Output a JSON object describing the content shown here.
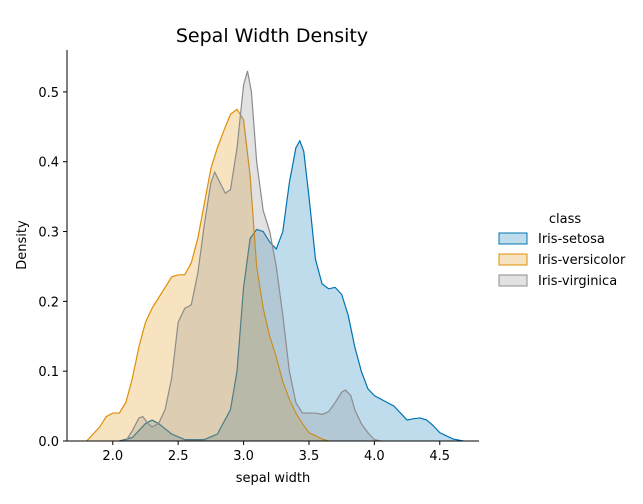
{
  "chart_data": {
    "type": "area",
    "title": "Sepal Width Density",
    "xlabel": "sepal width",
    "ylabel": "Density",
    "xlim": [
      1.65,
      4.8
    ],
    "ylim": [
      0,
      0.56
    ],
    "xticks": [
      2.0,
      2.5,
      3.0,
      3.5,
      4.0,
      4.5
    ],
    "yticks": [
      0.0,
      0.1,
      0.2,
      0.3,
      0.4,
      0.5
    ],
    "xtick_labels": [
      "2.0",
      "2.5",
      "3.0",
      "3.5",
      "4.0",
      "4.5"
    ],
    "ytick_labels": [
      "0.0",
      "0.1",
      "0.2",
      "0.3",
      "0.4",
      "0.5"
    ],
    "grid": false,
    "legend": {
      "title": "class",
      "position": "right"
    },
    "series": [
      {
        "name": "Iris-setosa",
        "color": "#0173b2",
        "points": [
          [
            2.05,
            0.0
          ],
          [
            2.15,
            0.005
          ],
          [
            2.25,
            0.025
          ],
          [
            2.3,
            0.03
          ],
          [
            2.35,
            0.025
          ],
          [
            2.45,
            0.01
          ],
          [
            2.55,
            0.002
          ],
          [
            2.7,
            0.002
          ],
          [
            2.8,
            0.01
          ],
          [
            2.9,
            0.045
          ],
          [
            2.95,
            0.1
          ],
          [
            3.0,
            0.22
          ],
          [
            3.05,
            0.29
          ],
          [
            3.1,
            0.303
          ],
          [
            3.15,
            0.3
          ],
          [
            3.2,
            0.285
          ],
          [
            3.25,
            0.275
          ],
          [
            3.3,
            0.3
          ],
          [
            3.35,
            0.37
          ],
          [
            3.4,
            0.42
          ],
          [
            3.43,
            0.43
          ],
          [
            3.46,
            0.415
          ],
          [
            3.5,
            0.35
          ],
          [
            3.55,
            0.26
          ],
          [
            3.6,
            0.225
          ],
          [
            3.65,
            0.218
          ],
          [
            3.7,
            0.22
          ],
          [
            3.75,
            0.21
          ],
          [
            3.8,
            0.18
          ],
          [
            3.85,
            0.135
          ],
          [
            3.9,
            0.1
          ],
          [
            3.95,
            0.075
          ],
          [
            4.0,
            0.065
          ],
          [
            4.1,
            0.055
          ],
          [
            4.15,
            0.05
          ],
          [
            4.2,
            0.04
          ],
          [
            4.25,
            0.03
          ],
          [
            4.3,
            0.032
          ],
          [
            4.35,
            0.033
          ],
          [
            4.4,
            0.03
          ],
          [
            4.45,
            0.022
          ],
          [
            4.5,
            0.012
          ],
          [
            4.6,
            0.003
          ],
          [
            4.68,
            0.0
          ]
        ]
      },
      {
        "name": "Iris-versicolor",
        "color": "#de8f05",
        "points": [
          [
            1.8,
            0.0
          ],
          [
            1.9,
            0.02
          ],
          [
            1.95,
            0.035
          ],
          [
            2.0,
            0.04
          ],
          [
            2.05,
            0.04
          ],
          [
            2.1,
            0.055
          ],
          [
            2.15,
            0.09
          ],
          [
            2.2,
            0.135
          ],
          [
            2.25,
            0.17
          ],
          [
            2.3,
            0.19
          ],
          [
            2.35,
            0.205
          ],
          [
            2.4,
            0.22
          ],
          [
            2.45,
            0.235
          ],
          [
            2.5,
            0.238
          ],
          [
            2.55,
            0.238
          ],
          [
            2.6,
            0.255
          ],
          [
            2.65,
            0.29
          ],
          [
            2.7,
            0.34
          ],
          [
            2.75,
            0.39
          ],
          [
            2.8,
            0.42
          ],
          [
            2.85,
            0.445
          ],
          [
            2.9,
            0.468
          ],
          [
            2.95,
            0.475
          ],
          [
            3.0,
            0.46
          ],
          [
            3.05,
            0.38
          ],
          [
            3.1,
            0.25
          ],
          [
            3.15,
            0.19
          ],
          [
            3.2,
            0.15
          ],
          [
            3.25,
            0.12
          ],
          [
            3.3,
            0.085
          ],
          [
            3.35,
            0.06
          ],
          [
            3.4,
            0.04
          ],
          [
            3.45,
            0.025
          ],
          [
            3.5,
            0.012
          ],
          [
            3.6,
            0.003
          ],
          [
            3.65,
            0.0
          ]
        ]
      },
      {
        "name": "Iris-virginica",
        "color": "#8c8c8c",
        "points": [
          [
            2.1,
            0.0
          ],
          [
            2.15,
            0.015
          ],
          [
            2.2,
            0.033
          ],
          [
            2.23,
            0.035
          ],
          [
            2.27,
            0.025
          ],
          [
            2.3,
            0.02
          ],
          [
            2.35,
            0.025
          ],
          [
            2.4,
            0.045
          ],
          [
            2.45,
            0.09
          ],
          [
            2.5,
            0.17
          ],
          [
            2.55,
            0.19
          ],
          [
            2.6,
            0.195
          ],
          [
            2.65,
            0.24
          ],
          [
            2.7,
            0.31
          ],
          [
            2.75,
            0.37
          ],
          [
            2.78,
            0.385
          ],
          [
            2.82,
            0.37
          ],
          [
            2.86,
            0.355
          ],
          [
            2.9,
            0.36
          ],
          [
            2.95,
            0.42
          ],
          [
            3.0,
            0.51
          ],
          [
            3.03,
            0.53
          ],
          [
            3.06,
            0.5
          ],
          [
            3.1,
            0.4
          ],
          [
            3.15,
            0.33
          ],
          [
            3.2,
            0.3
          ],
          [
            3.25,
            0.25
          ],
          [
            3.3,
            0.18
          ],
          [
            3.35,
            0.1
          ],
          [
            3.4,
            0.055
          ],
          [
            3.45,
            0.04
          ],
          [
            3.5,
            0.04
          ],
          [
            3.55,
            0.04
          ],
          [
            3.6,
            0.038
          ],
          [
            3.65,
            0.042
          ],
          [
            3.7,
            0.055
          ],
          [
            3.75,
            0.07
          ],
          [
            3.78,
            0.073
          ],
          [
            3.82,
            0.065
          ],
          [
            3.85,
            0.045
          ],
          [
            3.9,
            0.025
          ],
          [
            3.95,
            0.012
          ],
          [
            4.0,
            0.002
          ],
          [
            4.05,
            0.0
          ]
        ]
      }
    ]
  }
}
